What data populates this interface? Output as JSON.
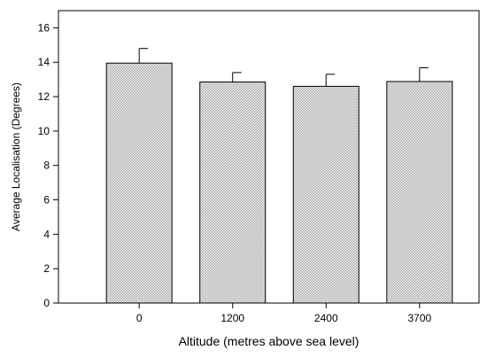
{
  "chart_data": {
    "type": "bar",
    "title": "",
    "xlabel": "Altitude (metres above sea level)",
    "ylabel": "Average Localisation (Degrees)",
    "categories": [
      "0",
      "1200",
      "2400",
      "3700"
    ],
    "values": [
      13.95,
      12.85,
      12.6,
      12.88
    ],
    "error_upper": [
      0.85,
      0.55,
      0.7,
      0.8
    ],
    "ylim": [
      0,
      17
    ],
    "yticks": [
      "0",
      "2",
      "4",
      "6",
      "8",
      "10",
      "12",
      "14",
      "16"
    ],
    "grid": false,
    "legend": "none",
    "bar_fill": "#d9d9d9",
    "bar_stroke": "#000000"
  }
}
